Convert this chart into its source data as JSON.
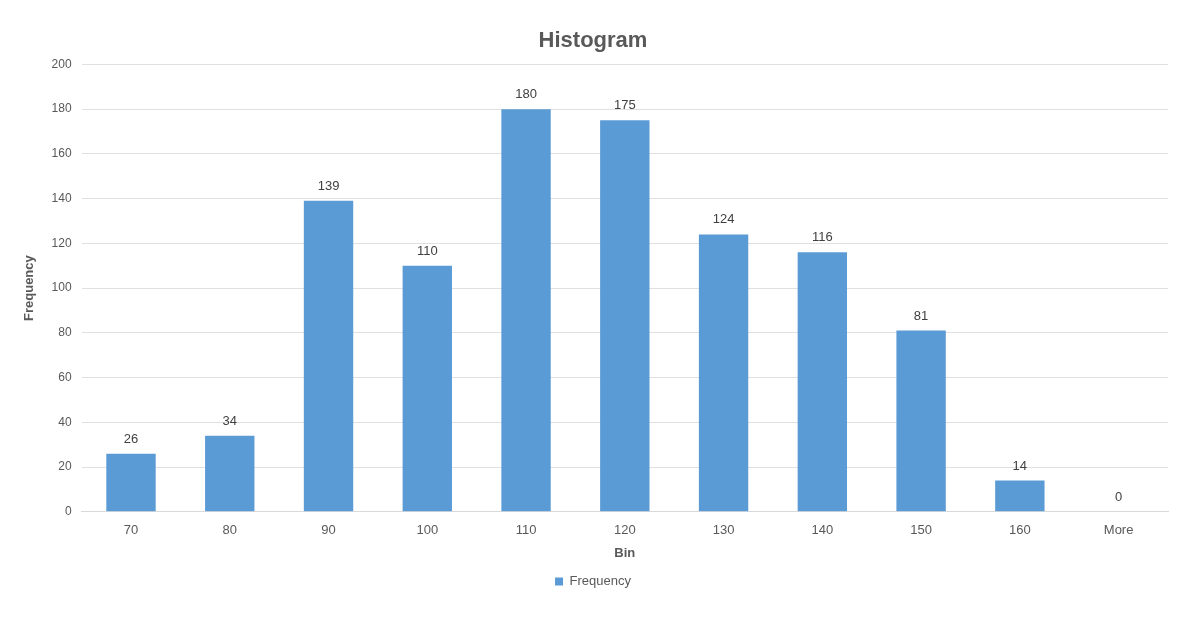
{
  "chart_data": {
    "type": "bar",
    "title": "Histogram",
    "xlabel": "Bin",
    "ylabel": "Frequency",
    "categories": [
      "70",
      "80",
      "90",
      "100",
      "110",
      "120",
      "130",
      "140",
      "150",
      "160",
      "More"
    ],
    "series": [
      {
        "name": "Frequency",
        "color": "#5b9bd5",
        "values": [
          26,
          34,
          139,
          110,
          180,
          175,
          124,
          116,
          81,
          14,
          0
        ]
      }
    ],
    "ylim": [
      0,
      200
    ],
    "yticks": [
      0,
      20,
      40,
      60,
      80,
      100,
      120,
      140,
      160,
      180,
      200
    ],
    "grid": "y",
    "legend": "bottom",
    "data_labels": true
  }
}
